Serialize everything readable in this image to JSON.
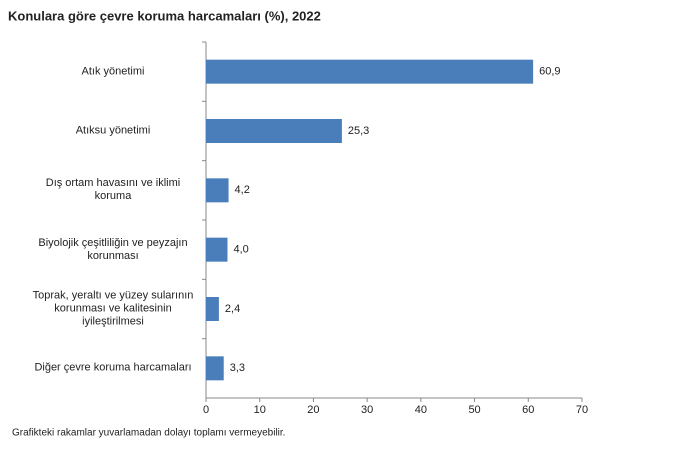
{
  "chart_data": {
    "type": "bar",
    "orientation": "horizontal",
    "title": "Konulara göre çevre koruma harcamaları (%), 2022",
    "categories": [
      "Atık yönetimi",
      "Atıksu yönetimi",
      "Dış ortam havasını ve iklimi koruma",
      "Biyolojik çeşitliliğin ve peyzajın korunması",
      "Toprak, yeraltı ve yüzey sularının korunması ve kalitesinin iyileştirilmesi",
      "Diğer çevre koruma harcamaları"
    ],
    "values": [
      60.9,
      25.3,
      4.2,
      4.0,
      2.4,
      3.3
    ],
    "value_labels": [
      "60,9",
      "25,3",
      "4,2",
      "4,0",
      "2,4",
      "3,3"
    ],
    "color": "#4a7ebb",
    "xlim": [
      0,
      70
    ],
    "xticks": [
      0,
      10,
      20,
      30,
      40,
      50,
      60,
      70
    ],
    "grid": false,
    "note": "Grafikteki rakamlar yuvarlamadan dolayı toplamı vermeyebilir."
  }
}
